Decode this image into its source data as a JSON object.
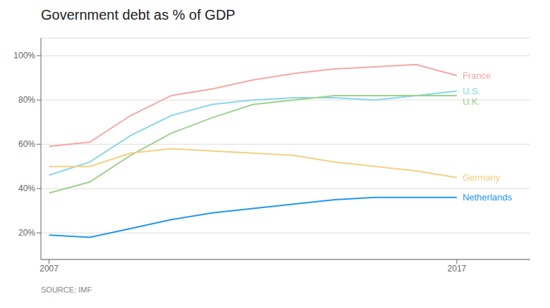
{
  "chart_data": {
    "type": "line",
    "title": "Government debt as % of GDP",
    "annotations": [
      "SOURCE: IMF"
    ],
    "x": [
      2007,
      2008,
      2009,
      2010,
      2011,
      2012,
      2013,
      2014,
      2015,
      2016,
      2017
    ],
    "series": [
      {
        "name": "France",
        "color": "#f4a8a8",
        "values": [
          59,
          61,
          73,
          82,
          85,
          89,
          92,
          94,
          95,
          96,
          91
        ]
      },
      {
        "name": "U.S.",
        "color": "#88d8e8",
        "values": [
          46,
          52,
          64,
          73,
          78,
          80,
          81,
          81,
          80,
          82,
          84
        ]
      },
      {
        "name": "U.K.",
        "color": "#a0d090",
        "values": [
          38,
          43,
          55,
          65,
          72,
          78,
          80,
          82,
          82,
          82,
          82
        ]
      },
      {
        "name": "Germany",
        "color": "#f5d080",
        "values": [
          50,
          50,
          56,
          58,
          57,
          56,
          55,
          52,
          50,
          48,
          45
        ]
      },
      {
        "name": "Netherlands",
        "color": "#2196F3",
        "values": [
          19,
          18,
          22,
          26,
          29,
          31,
          33,
          35,
          36,
          36,
          36
        ]
      }
    ],
    "xlim": [
      2006.8,
      2018.8
    ],
    "xticks": [
      2007,
      2017
    ],
    "ylim": [
      8,
      108
    ],
    "yticks": [
      {
        "value": 20,
        "label": "20%"
      },
      {
        "value": 40,
        "label": "40%"
      },
      {
        "value": 60,
        "label": "60%"
      },
      {
        "value": 80,
        "label": "80%"
      },
      {
        "value": 100,
        "label": "100%"
      }
    ],
    "grid": true
  }
}
